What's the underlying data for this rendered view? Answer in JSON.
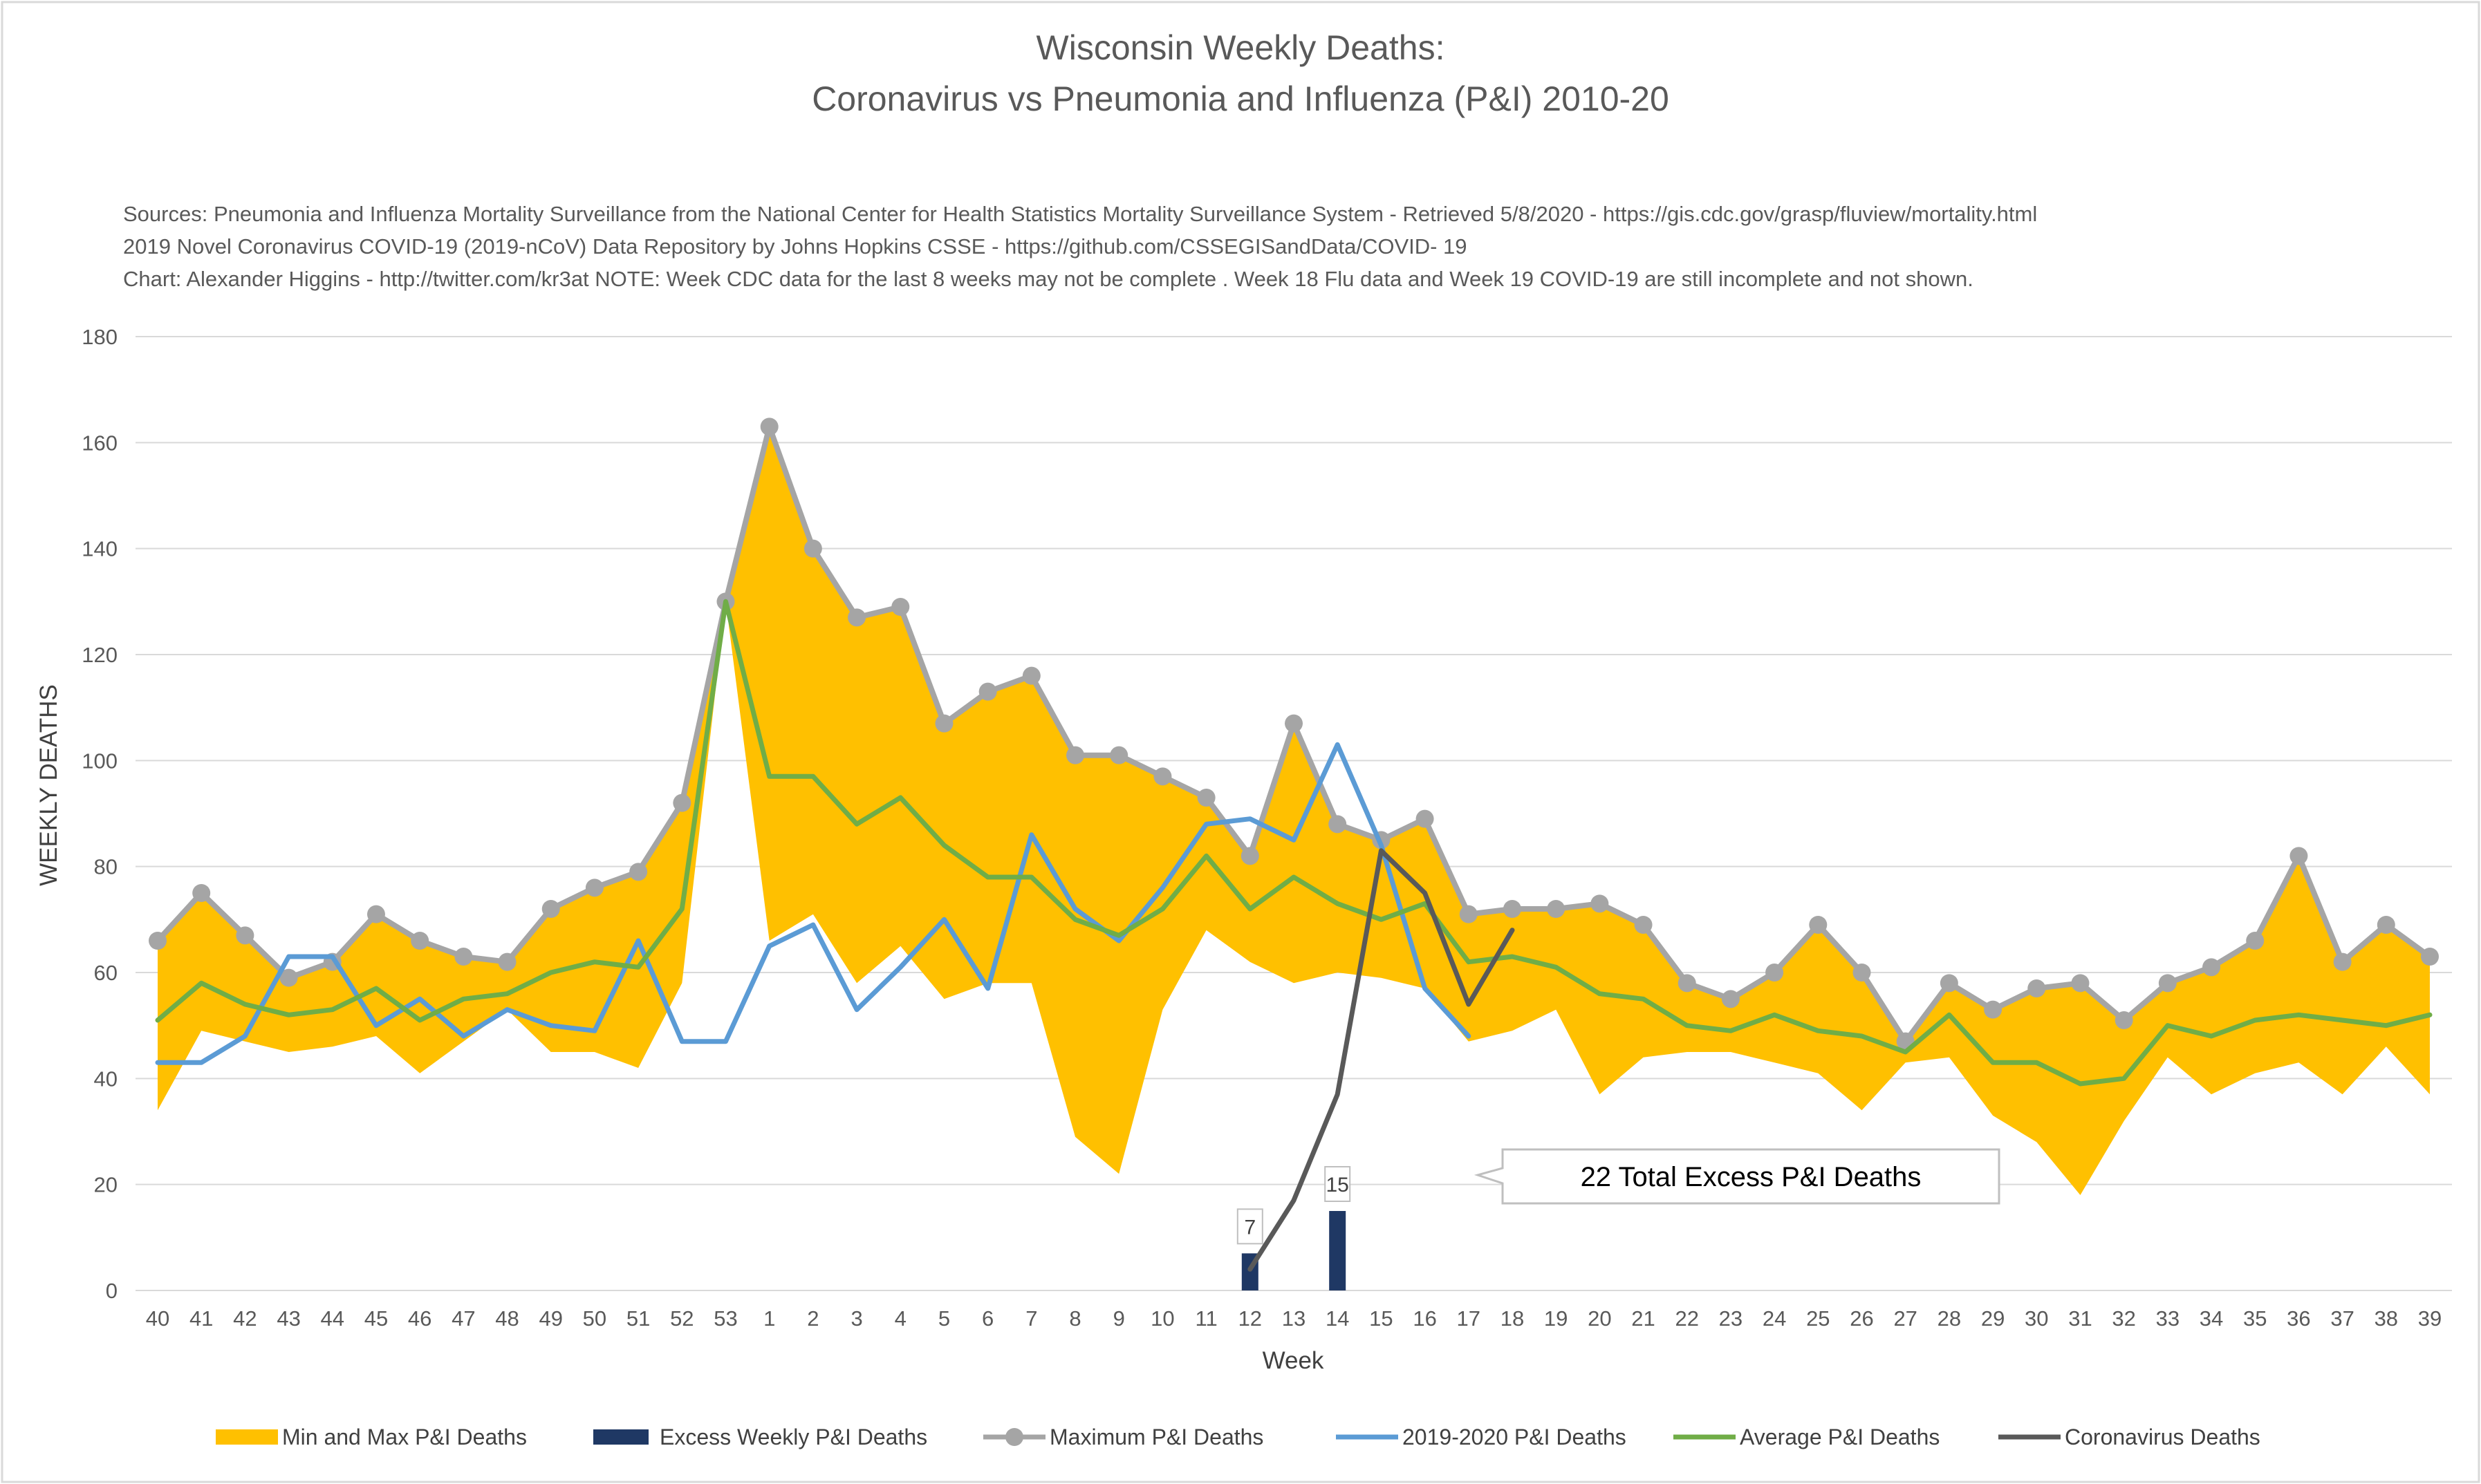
{
  "chart_data": {
    "type": "line",
    "title_line1": "Wisconsin Weekly Deaths:",
    "title_line2": "Coronavirus vs Pneumonia and Influenza (P&I) 2010-20",
    "sources": [
      "Sources: Pneumonia and Influenza Mortality Surveillance from the National Center for Health Statistics Mortality Surveillance System - Retrieved 5/8/2020 - https://gis.cdc.gov/grasp/fluview/mortality.html",
      "2019 Novel Coronavirus COVID-19 (2019-nCoV) Data Repository by Johns Hopkins CSSE - https://github.com/CSSEGISandData/COVID- 19",
      "Chart: Alexander Higgins - http://twitter.com/kr3at   NOTE: Week CDC data for the last 8 weeks may not be complete . Week 18 Flu data and Week 19 COVID-19 are still incomplete and not shown."
    ],
    "xlabel": "Week",
    "ylabel": "WEEKLY DEATHS",
    "ylim": [
      0,
      180
    ],
    "yticks": [
      0,
      20,
      40,
      60,
      80,
      100,
      120,
      140,
      160,
      180
    ],
    "grid": true,
    "legend_position": "bottom",
    "categories": [
      "40",
      "41",
      "42",
      "43",
      "44",
      "45",
      "46",
      "47",
      "48",
      "49",
      "50",
      "51",
      "52",
      "53",
      "1",
      "2",
      "3",
      "4",
      "5",
      "6",
      "7",
      "8",
      "9",
      "10",
      "11",
      "12",
      "13",
      "14",
      "15",
      "16",
      "17",
      "18",
      "19",
      "20",
      "21",
      "22",
      "23",
      "24",
      "25",
      "26",
      "27",
      "28",
      "29",
      "30",
      "31",
      "32",
      "33",
      "34",
      "35",
      "36",
      "37",
      "38",
      "39"
    ],
    "series": [
      {
        "name": "Min and Max P&I Deaths",
        "kind": "band",
        "color": "#FFC000",
        "lower": [
          34,
          49,
          47,
          45,
          46,
          48,
          41,
          47,
          53,
          45,
          45,
          42,
          58,
          130,
          66,
          71,
          58,
          65,
          55,
          58,
          58,
          29,
          22,
          53,
          68,
          62,
          58,
          60,
          59,
          57,
          47,
          49,
          53,
          37,
          44,
          45,
          45,
          43,
          41,
          34,
          43,
          44,
          33,
          28,
          18,
          32,
          44,
          37,
          41,
          43,
          37,
          46,
          37
        ],
        "upper": [
          66,
          75,
          67,
          59,
          62,
          71,
          66,
          63,
          62,
          72,
          76,
          79,
          92,
          130,
          163,
          140,
          127,
          129,
          107,
          113,
          116,
          101,
          101,
          97,
          93,
          82,
          107,
          88,
          85,
          89,
          71,
          72,
          72,
          73,
          69,
          58,
          55,
          60,
          69,
          60,
          47,
          58,
          53,
          57,
          58,
          51,
          58,
          61,
          66,
          82,
          62,
          69,
          63
        ]
      },
      {
        "name": "Excess Weekly P&I Deaths",
        "kind": "bar",
        "color": "#1F3864",
        "points": [
          {
            "x": "12",
            "y": 7,
            "label": "7"
          },
          {
            "x": "14",
            "y": 15,
            "label": "15"
          }
        ]
      },
      {
        "name": "Maximum P&I Deaths",
        "kind": "line-marker",
        "color": "#A5A5A5",
        "values": [
          66,
          75,
          67,
          59,
          62,
          71,
          66,
          63,
          62,
          72,
          76,
          79,
          92,
          130,
          163,
          140,
          127,
          129,
          107,
          113,
          116,
          101,
          101,
          97,
          93,
          82,
          107,
          88,
          85,
          89,
          71,
          72,
          72,
          73,
          69,
          58,
          55,
          60,
          69,
          60,
          47,
          58,
          53,
          57,
          58,
          51,
          58,
          61,
          66,
          82,
          62,
          69,
          63
        ]
      },
      {
        "name": "2019-2020 P&I Deaths",
        "kind": "line",
        "color": "#5B9BD5",
        "values": [
          43,
          43,
          48,
          63,
          63,
          50,
          55,
          48,
          53,
          50,
          49,
          66,
          47,
          47,
          65,
          69,
          53,
          61,
          70,
          57,
          86,
          72,
          66,
          76,
          88,
          89,
          85,
          103,
          84,
          57,
          48,
          null,
          null,
          null,
          null,
          null,
          null,
          null,
          null,
          null,
          null,
          null,
          null,
          null,
          null,
          null,
          null,
          null,
          null,
          null,
          null,
          null,
          null
        ]
      },
      {
        "name": "Average P&I Deaths",
        "kind": "line",
        "color": "#70AD47",
        "values": [
          51,
          58,
          54,
          52,
          53,
          57,
          51,
          55,
          56,
          60,
          62,
          61,
          72,
          130,
          97,
          97,
          88,
          93,
          84,
          78,
          78,
          70,
          67,
          72,
          82,
          72,
          78,
          73,
          70,
          73,
          62,
          63,
          61,
          56,
          55,
          50,
          49,
          52,
          49,
          48,
          45,
          52,
          43,
          43,
          39,
          40,
          50,
          48,
          51,
          52,
          51,
          50,
          52
        ]
      },
      {
        "name": "Coronavirus Deaths",
        "kind": "line",
        "color": "#595959",
        "values": [
          null,
          null,
          null,
          null,
          null,
          null,
          null,
          null,
          null,
          null,
          null,
          null,
          null,
          null,
          null,
          null,
          null,
          null,
          null,
          null,
          null,
          null,
          null,
          null,
          null,
          4,
          17,
          37,
          83,
          75,
          54,
          68,
          null,
          null,
          null,
          null,
          null,
          null,
          null,
          null,
          null,
          null,
          null,
          null,
          null,
          null,
          null,
          null,
          null,
          null,
          null,
          null,
          null
        ]
      }
    ],
    "annotations": [
      {
        "text": "22 Total Excess P&I Deaths",
        "x": "18",
        "y": 22
      }
    ]
  }
}
